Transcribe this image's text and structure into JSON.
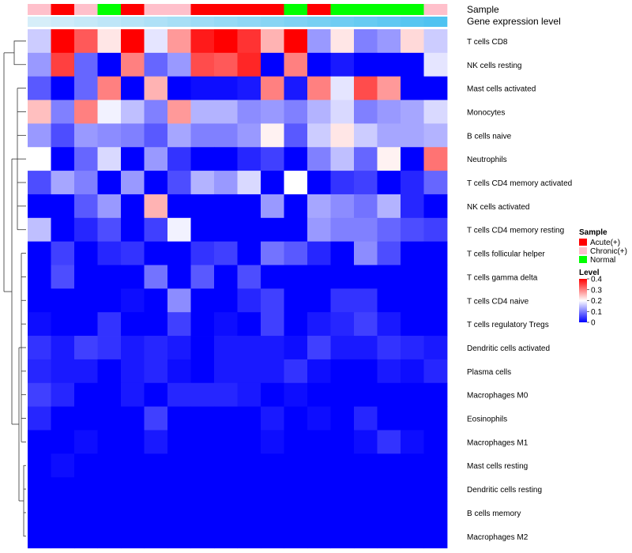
{
  "chart_data": {
    "type": "heatmap",
    "title": "",
    "annotation_tracks": [
      {
        "label": "Sample",
        "values": [
          "Chronic(+)",
          "Acute(+)",
          "Chronic(+)",
          "Normal",
          "Acute(+)",
          "Chronic(+)",
          "Chronic(+)",
          "Acute(+)",
          "Acute(+)",
          "Acute(+)",
          "Acute(+)",
          "Normal",
          "Acute(+)",
          "Normal",
          "Normal",
          "Normal",
          "Normal",
          "Chronic(+)"
        ]
      },
      {
        "label": "Gene expression level",
        "values": [
          0.02,
          0.04,
          0.06,
          0.08,
          0.1,
          0.12,
          0.14,
          0.16,
          0.18,
          0.2,
          0.22,
          0.24,
          0.26,
          0.28,
          0.3,
          0.32,
          0.34,
          0.36
        ]
      }
    ],
    "rows": [
      "T cells CD8",
      "NK cells resting",
      "Mast cells activated",
      "Monocytes",
      "B cells naive",
      "Neutrophils",
      "T cells CD4 memory activated",
      "NK cells activated",
      "T cells CD4 memory resting",
      "T cells follicular helper",
      "T cells gamma delta",
      "T cells CD4 naive",
      "T cells regulatory  Tregs",
      "Dendritic cells activated",
      "Plasma cells",
      "Macrophages M0",
      "Eosinophils",
      "Macrophages M1",
      "Mast cells resting",
      "Dendritic cells resting",
      "B cells memory",
      "Macrophages M2"
    ],
    "values": [
      [
        0.16,
        0.4,
        0.33,
        0.22,
        0.4,
        0.18,
        0.28,
        0.38,
        0.4,
        0.36,
        0.26,
        0.4,
        0.12,
        0.22,
        0.1,
        0.12,
        0.23,
        0.16
      ],
      [
        0.12,
        0.35,
        0.08,
        0.0,
        0.3,
        0.08,
        0.12,
        0.34,
        0.33,
        0.37,
        0.0,
        0.3,
        0.0,
        0.02,
        0.0,
        0.0,
        0.0,
        0.18
      ],
      [
        0.07,
        0.0,
        0.08,
        0.3,
        0.0,
        0.26,
        0.0,
        0.01,
        0.01,
        0.02,
        0.3,
        0.02,
        0.3,
        0.18,
        0.34,
        0.28,
        0.0,
        0.0
      ],
      [
        0.25,
        0.1,
        0.3,
        0.19,
        0.15,
        0.1,
        0.28,
        0.14,
        0.14,
        0.11,
        0.12,
        0.1,
        0.14,
        0.17,
        0.1,
        0.12,
        0.13,
        0.17
      ],
      [
        0.12,
        0.06,
        0.12,
        0.11,
        0.1,
        0.07,
        0.13,
        0.1,
        0.1,
        0.12,
        0.21,
        0.07,
        0.16,
        0.22,
        0.16,
        0.13,
        0.13,
        0.14
      ],
      [
        0.2,
        0.0,
        0.08,
        0.17,
        0.0,
        0.12,
        0.04,
        0.0,
        0.0,
        0.03,
        0.05,
        0.0,
        0.1,
        0.15,
        0.08,
        0.21,
        0.0,
        0.31
      ],
      [
        0.06,
        0.13,
        0.1,
        0.0,
        0.12,
        0.0,
        0.06,
        0.14,
        0.12,
        0.17,
        0.0,
        0.2,
        0.0,
        0.04,
        0.05,
        0.0,
        0.03,
        0.08
      ],
      [
        0.0,
        0.0,
        0.07,
        0.12,
        0.0,
        0.26,
        0.0,
        0.0,
        0.0,
        0.0,
        0.12,
        0.0,
        0.13,
        0.11,
        0.09,
        0.14,
        0.03,
        0.0
      ],
      [
        0.15,
        0.0,
        0.03,
        0.06,
        0.0,
        0.05,
        0.19,
        0.0,
        0.0,
        0.0,
        0.0,
        0.0,
        0.12,
        0.1,
        0.1,
        0.08,
        0.06,
        0.05
      ],
      [
        0.0,
        0.05,
        0.0,
        0.03,
        0.04,
        0.0,
        0.0,
        0.04,
        0.05,
        0.0,
        0.09,
        0.07,
        0.03,
        0.0,
        0.11,
        0.06,
        0.0,
        0.0
      ],
      [
        0.0,
        0.06,
        0.0,
        0.0,
        0.0,
        0.09,
        0.0,
        0.07,
        0.0,
        0.06,
        0.0,
        0.0,
        0.0,
        0.0,
        0.0,
        0.0,
        0.0,
        0.0
      ],
      [
        0.0,
        0.0,
        0.0,
        0.0,
        0.01,
        0.0,
        0.11,
        0.0,
        0.0,
        0.03,
        0.05,
        0.0,
        0.0,
        0.04,
        0.04,
        0.0,
        0.0,
        0.0
      ],
      [
        0.01,
        0.0,
        0.0,
        0.04,
        0.0,
        0.0,
        0.05,
        0.0,
        0.01,
        0.0,
        0.05,
        0.0,
        0.02,
        0.03,
        0.05,
        0.02,
        0.0,
        0.0
      ],
      [
        0.04,
        0.02,
        0.05,
        0.04,
        0.02,
        0.03,
        0.02,
        0.0,
        0.02,
        0.02,
        0.02,
        0.01,
        0.05,
        0.02,
        0.02,
        0.04,
        0.03,
        0.02
      ],
      [
        0.03,
        0.02,
        0.02,
        0.0,
        0.02,
        0.03,
        0.01,
        0.0,
        0.02,
        0.02,
        0.02,
        0.04,
        0.01,
        0.0,
        0.0,
        0.02,
        0.01,
        0.03
      ],
      [
        0.05,
        0.03,
        0.0,
        0.0,
        0.02,
        0.0,
        0.03,
        0.03,
        0.03,
        0.02,
        0.0,
        0.01,
        0.0,
        0.0,
        0.0,
        0.0,
        0.0,
        0.0
      ],
      [
        0.03,
        0.0,
        0.0,
        0.0,
        0.0,
        0.05,
        0.0,
        0.0,
        0.0,
        0.0,
        0.02,
        0.0,
        0.01,
        0.0,
        0.03,
        0.0,
        0.0,
        0.0
      ],
      [
        0.0,
        0.0,
        0.01,
        0.0,
        0.0,
        0.02,
        0.0,
        0.0,
        0.0,
        0.0,
        0.01,
        0.0,
        0.0,
        0.0,
        0.01,
        0.04,
        0.01,
        0.0
      ],
      [
        0.0,
        0.01,
        0.0,
        0.0,
        0.0,
        0.0,
        0.0,
        0.0,
        0.0,
        0.0,
        0.0,
        0.0,
        0.0,
        0.0,
        0.0,
        0.0,
        0.0,
        0.0
      ],
      [
        0.0,
        0.0,
        0.0,
        0.0,
        0.0,
        0.0,
        0.0,
        0.0,
        0.0,
        0.0,
        0.0,
        0.0,
        0.0,
        0.0,
        0.0,
        0.0,
        0.0,
        0.0
      ],
      [
        0.0,
        0.0,
        0.0,
        0.0,
        0.0,
        0.0,
        0.0,
        0.0,
        0.0,
        0.0,
        0.0,
        0.0,
        0.0,
        0.0,
        0.0,
        0.0,
        0.0,
        0.0
      ],
      [
        0.0,
        0.0,
        0.0,
        0.0,
        0.0,
        0.0,
        0.0,
        0.0,
        0.0,
        0.0,
        0.0,
        0.0,
        0.0,
        0.0,
        0.0,
        0.0,
        0.0,
        0.0
      ]
    ],
    "color_scale": {
      "min": 0,
      "mid": 0.2,
      "max": 0.4,
      "low_color": "#0000ff",
      "mid_color": "#ffffff",
      "high_color": "#ff0000"
    },
    "row_dendrogram": true,
    "legends": {
      "sample": {
        "title": "Sample",
        "items": [
          {
            "label": "Acute(+)",
            "color": "#ff0000"
          },
          {
            "label": "Chronic(+)",
            "color": "#ffc0cb"
          },
          {
            "label": "Normal",
            "color": "#00ff00"
          }
        ]
      },
      "level": {
        "title": "Level",
        "ticks": [
          "0.4",
          "0.3",
          "0.2",
          "0.1",
          "0"
        ],
        "tick_values": [
          0.4,
          0.3,
          0.2,
          0.1,
          0
        ]
      }
    },
    "gene_expression_colors": {
      "low": "#d6eef9",
      "high": "#4fc3f1"
    }
  }
}
